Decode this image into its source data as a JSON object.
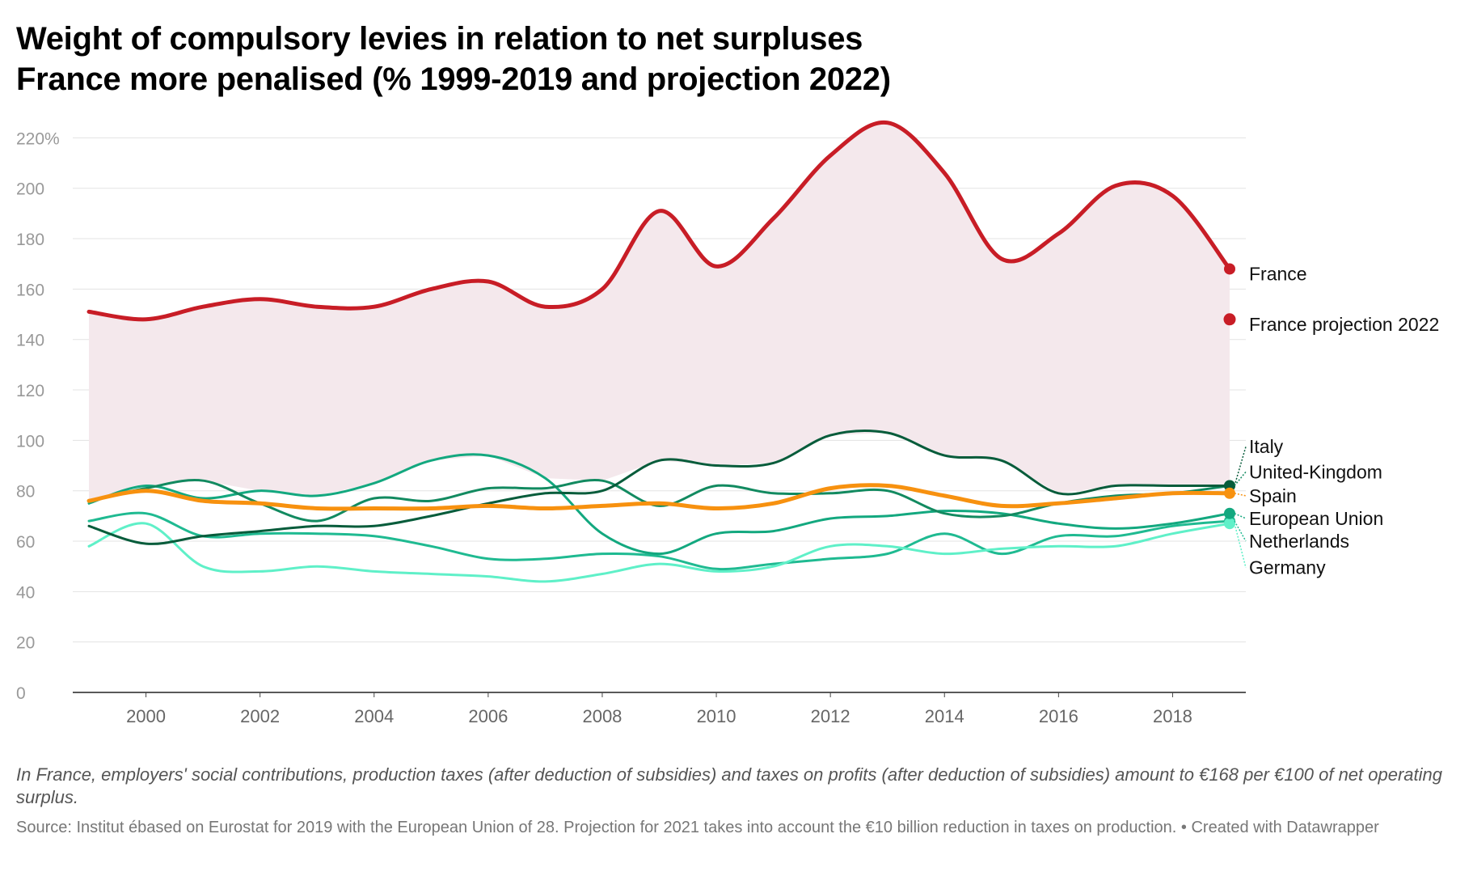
{
  "header": {
    "title": "Weight of compulsory levies in relation to net surpluses",
    "subtitle": "France more penalised (% 1999-2019 and projection 2022)"
  },
  "footer": {
    "note": "In France, employers' social contributions, production taxes (after deduction of subsidies) and taxes on profits (after deduction of subsidies) amount to €168 per €100 of net operating surplus.",
    "source": "Source: Institut ébased on Eurostat for 2019 with the European Union of 28. Projection for 2021 takes into account the €10 billion reduction in taxes on production. • Created with Datawrapper"
  },
  "chart_data": {
    "type": "line",
    "title": "Weight of compulsory levies in relation to net surpluses",
    "subtitle": "France more penalised (% 1999-2019 and projection 2022)",
    "ylim": [
      0,
      220
    ],
    "xlim": [
      1999,
      2019
    ],
    "y_ticks": [
      {
        "value": 0,
        "label": "0"
      },
      {
        "value": 20,
        "label": "20"
      },
      {
        "value": 40,
        "label": "40"
      },
      {
        "value": 60,
        "label": "60"
      },
      {
        "value": 80,
        "label": "80"
      },
      {
        "value": 100,
        "label": "100"
      },
      {
        "value": 120,
        "label": "120"
      },
      {
        "value": 140,
        "label": "140"
      },
      {
        "value": 160,
        "label": "160"
      },
      {
        "value": 180,
        "label": "180"
      },
      {
        "value": 200,
        "label": "200"
      },
      {
        "value": 220,
        "label": "220%"
      }
    ],
    "x_ticks": [
      {
        "value": 2000,
        "label": "2000"
      },
      {
        "value": 2002,
        "label": "2002"
      },
      {
        "value": 2004,
        "label": "2004"
      },
      {
        "value": 2006,
        "label": "2006"
      },
      {
        "value": 2008,
        "label": "2008"
      },
      {
        "value": 2010,
        "label": "2010"
      },
      {
        "value": 2012,
        "label": "2012"
      },
      {
        "value": 2014,
        "label": "2014"
      },
      {
        "value": 2016,
        "label": "2016"
      },
      {
        "value": 2018,
        "label": "2018"
      }
    ],
    "grid": true,
    "area_fill": {
      "series": "France",
      "color": "#f4e8ec"
    },
    "x": [
      1999,
      2000,
      2001,
      2002,
      2003,
      2004,
      2005,
      2006,
      2007,
      2008,
      2009,
      2010,
      2011,
      2012,
      2013,
      2014,
      2015,
      2016,
      2017,
      2018,
      2019
    ],
    "series": [
      {
        "name": "Netherlands",
        "color": "#1fba91",
        "width": 3,
        "values": [
          68,
          71,
          62,
          63,
          63,
          62,
          58,
          53,
          53,
          55,
          54,
          49,
          51,
          53,
          55,
          63,
          55,
          62,
          62,
          66,
          68
        ]
      },
      {
        "name": "Germany",
        "color": "#5ff0c8",
        "width": 3,
        "values": [
          58,
          67,
          50,
          48,
          50,
          48,
          47,
          46,
          44,
          47,
          51,
          48,
          50,
          58,
          58,
          55,
          57,
          58,
          58,
          63,
          67
        ]
      },
      {
        "name": "European Union",
        "color": "#13a87f",
        "width": 3,
        "values": [
          75,
          82,
          77,
          80,
          78,
          83,
          92,
          94,
          85,
          63,
          55,
          63,
          64,
          69,
          70,
          72,
          71,
          67,
          65,
          67,
          71
        ]
      },
      {
        "name": "United-Kingdom",
        "color": "#128a60",
        "width": 3,
        "values": [
          76,
          81,
          84,
          75,
          68,
          77,
          76,
          81,
          81,
          84,
          74,
          82,
          79,
          79,
          80,
          71,
          70,
          75,
          78,
          79,
          82
        ]
      },
      {
        "name": "Italy",
        "color": "#075c3b",
        "width": 3,
        "values": [
          66,
          59,
          62,
          64,
          66,
          66,
          70,
          75,
          79,
          80,
          92,
          90,
          91,
          102,
          103,
          94,
          92,
          79,
          82,
          82,
          82
        ]
      },
      {
        "name": "Spain",
        "color": "#f7910f",
        "width": 5,
        "values": [
          76,
          80,
          76,
          75,
          73,
          73,
          73,
          74,
          73,
          74,
          75,
          73,
          75,
          81,
          82,
          78,
          74,
          75,
          77,
          79,
          79
        ]
      },
      {
        "name": "France",
        "color": "#c81d26",
        "width": 5,
        "values": [
          151,
          148,
          153,
          156,
          153,
          153,
          160,
          163,
          153,
          160,
          191,
          169,
          188,
          213,
          226,
          206,
          172,
          182,
          201,
          197,
          168
        ]
      }
    ],
    "extra_points": [
      {
        "name": "France projection 2022",
        "x": 2019,
        "value": 148,
        "color": "#c81d26"
      }
    ],
    "end_labels": [
      {
        "text": "France",
        "series": "France",
        "value": 168,
        "label_value": 166,
        "color": "#c81d26",
        "connector": false
      },
      {
        "text": "France projection 2022",
        "value": 148,
        "label_value": 146,
        "color": "#c81d26",
        "connector": false
      },
      {
        "text": "Italy",
        "value": 82,
        "label_value": 97.5,
        "color": "#075c3b",
        "connector": true
      },
      {
        "text": "United-Kingdom",
        "value": 82,
        "label_value": 87.5,
        "color": "#128a60",
        "connector": true
      },
      {
        "text": "Spain",
        "value": 79,
        "label_value": 78,
        "color": "#f7910f",
        "connector": true
      },
      {
        "text": "European Union",
        "value": 71,
        "label_value": 69,
        "color": "#13a87f",
        "connector": true
      },
      {
        "text": "Netherlands",
        "value": 68,
        "label_value": 60,
        "color": "#1fba91",
        "connector": true
      },
      {
        "text": "Germany",
        "value": 67,
        "label_value": 49.5,
        "color": "#5ff0c8",
        "connector": true
      }
    ]
  }
}
